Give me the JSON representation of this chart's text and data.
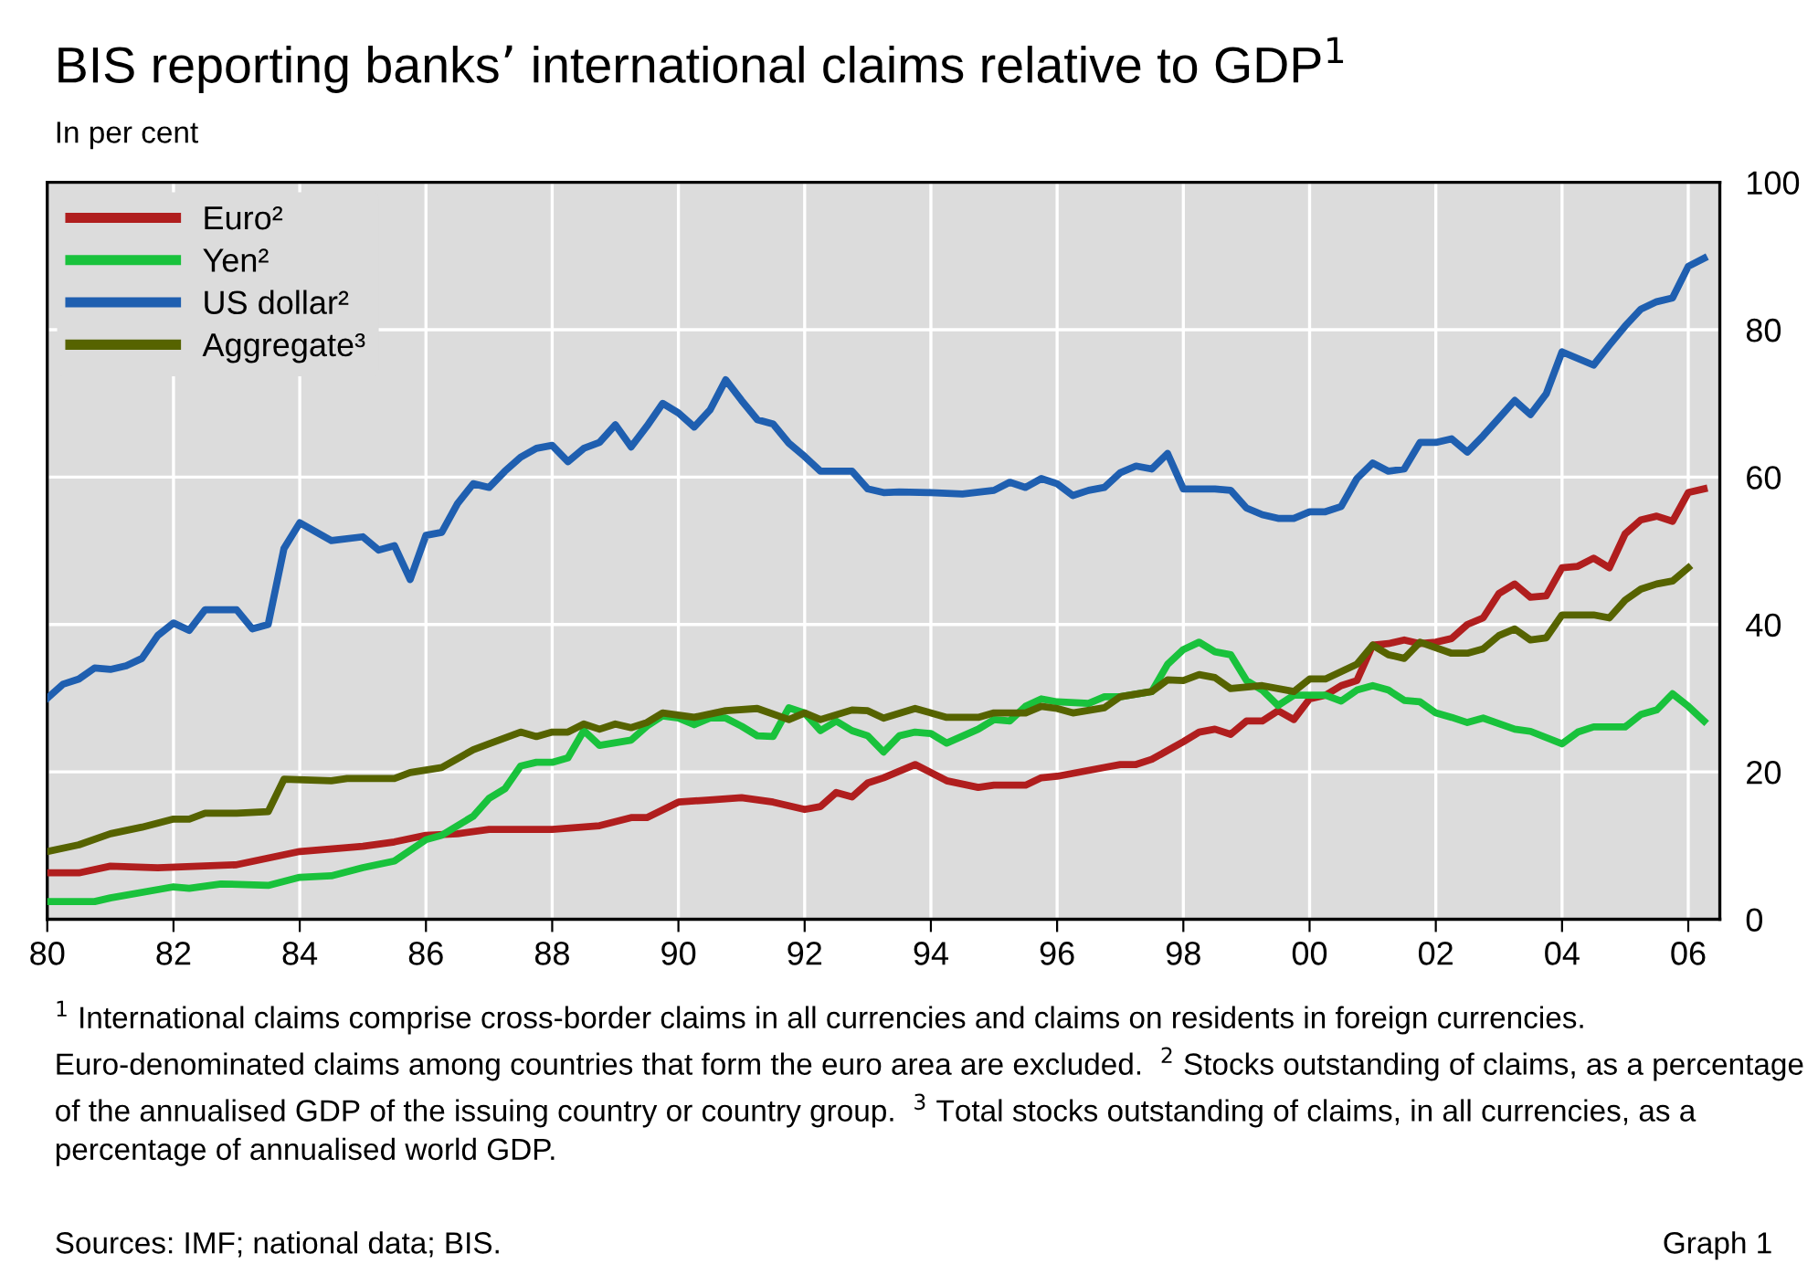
{
  "chart_data": {
    "type": "line",
    "title": "BIS reporting banks’ international claims relative to GDP$^{1}$",
    "subtitle": "In per cent",
    "series": [
      {
        "name": "Euro²",
        "color": "#b01e1e",
        "x": [
          1980,
          1980.5,
          1981,
          1981.75,
          1983,
          1983.5,
          1984,
          1985,
          1985.5,
          1986,
          1986.5,
          1987,
          1988,
          1988.75,
          1989.25,
          1989.5,
          1990,
          1990.5,
          1991,
          1991.5,
          1992,
          1992.25,
          1992.5,
          1992.75,
          1993,
          1993.25,
          1993.75,
          1994.25,
          1994.75,
          1995,
          1995.5,
          1995.75,
          1996,
          1996.75,
          1997,
          1997.25,
          1997.5,
          1998,
          1998.25,
          1998.5,
          1998.75,
          1999,
          1999.25,
          1999.5,
          1999.75,
          2000,
          2000.25,
          2000.5,
          2000.75,
          2001,
          2001.25,
          2001.5,
          2001.75,
          2002,
          2002.25,
          2002.5,
          2002.75,
          2003,
          2003.25,
          2003.5,
          2003.75,
          2004,
          2004.25,
          2004.5,
          2004.75,
          2005,
          2005.25,
          2005.5,
          2005.75,
          2006,
          2006.25
        ],
        "values": [
          6.3,
          6.3,
          7.2,
          7.0,
          7.4,
          8.3,
          9.2,
          9.9,
          10.5,
          11.4,
          11.6,
          12.2,
          12.2,
          12.7,
          13.8,
          13.8,
          15.9,
          16.2,
          16.5,
          15.9,
          14.9,
          15.3,
          17.2,
          16.6,
          18.5,
          19.2,
          21.0,
          18.8,
          17.9,
          18.2,
          18.2,
          19.2,
          19.4,
          20.6,
          21.0,
          21.0,
          21.7,
          24.1,
          25.4,
          25.8,
          25.1,
          26.9,
          26.9,
          28.3,
          27.1,
          29.9,
          30.4,
          31.7,
          32.4,
          37.2,
          37.4,
          37.9,
          37.4,
          37.6,
          38.1,
          40.0,
          40.9,
          44.2,
          45.5,
          43.7,
          43.9,
          47.7,
          47.9,
          49.0,
          47.7,
          52.3,
          54.2,
          54.7,
          54.0,
          57.9,
          58.4
        ]
      },
      {
        "name": "Yen²",
        "color": "#19c23c",
        "x": [
          1980,
          1980.75,
          1981,
          1982,
          1982.25,
          1982.75,
          1983.5,
          1984,
          1984.5,
          1985,
          1985.5,
          1986,
          1986.25,
          1986.75,
          1987,
          1987.25,
          1987.5,
          1987.75,
          1988,
          1988.25,
          1988.5,
          1988.75,
          1989.25,
          1989.5,
          1989.75,
          1990,
          1990.25,
          1990.5,
          1990.75,
          1991,
          1991.25,
          1991.5,
          1991.75,
          1992,
          1992.25,
          1992.5,
          1992.75,
          1993,
          1993.25,
          1993.5,
          1993.75,
          1994,
          1994.25,
          1994.75,
          1995,
          1995.25,
          1995.5,
          1995.75,
          1996,
          1996.5,
          1996.75,
          1997,
          1997.5,
          1997.75,
          1998,
          1998.25,
          1998.5,
          1998.75,
          1999,
          1999.25,
          1999.5,
          1999.75,
          2000,
          2000.25,
          2000.5,
          2000.75,
          2001,
          2001.25,
          2001.5,
          2001.75,
          2002,
          2002.25,
          2002.5,
          2002.75,
          2003.25,
          2003.5,
          2004,
          2004.25,
          2004.5,
          2005,
          2005.25,
          2005.5,
          2005.75,
          2006,
          2006.25
        ],
        "values": [
          2.4,
          2.4,
          2.9,
          4.4,
          4.2,
          4.8,
          4.6,
          5.7,
          5.9,
          7.0,
          7.9,
          10.8,
          11.4,
          14.0,
          16.4,
          17.7,
          20.8,
          21.3,
          21.3,
          21.9,
          25.6,
          23.6,
          24.3,
          26.2,
          27.6,
          27.3,
          26.4,
          27.3,
          27.3,
          26.2,
          24.9,
          24.8,
          28.7,
          28.0,
          25.6,
          26.9,
          25.6,
          24.9,
          22.7,
          24.9,
          25.4,
          25.2,
          23.9,
          25.8,
          27.1,
          26.9,
          28.9,
          29.9,
          29.5,
          29.3,
          30.2,
          30.2,
          30.9,
          34.6,
          36.6,
          37.6,
          36.3,
          35.9,
          32.4,
          31.1,
          29.0,
          30.4,
          30.4,
          30.4,
          29.6,
          31.1,
          31.7,
          31.1,
          29.7,
          29.5,
          28.0,
          27.4,
          26.7,
          27.3,
          25.8,
          25.5,
          23.8,
          25.4,
          26.1,
          26.1,
          27.8,
          28.4,
          30.6,
          28.9,
          26.9
        ]
      },
      {
        "name": "US dollar²",
        "color": "#1f5fb0",
        "x": [
          1980,
          1980.25,
          1980.5,
          1980.75,
          1981,
          1981.25,
          1981.5,
          1981.75,
          1982,
          1982.25,
          1982.5,
          1983,
          1983.25,
          1983.5,
          1983.75,
          1984,
          1984.5,
          1985,
          1985.25,
          1985.5,
          1985.75,
          1986,
          1986.25,
          1986.5,
          1986.75,
          1987,
          1987.25,
          1987.5,
          1987.75,
          1988,
          1988.25,
          1988.5,
          1988.75,
          1989,
          1989.25,
          1989.5,
          1989.75,
          1990,
          1990.25,
          1990.5,
          1990.75,
          1991,
          1991.25,
          1991.5,
          1991.75,
          1992,
          1992.25,
          1992.75,
          1993,
          1993.25,
          1993.5,
          1994,
          1994.5,
          1995,
          1995.25,
          1995.5,
          1995.75,
          1996,
          1996.25,
          1996.5,
          1996.75,
          1997,
          1997.25,
          1997.5,
          1997.75,
          1998,
          1998.5,
          1998.75,
          1999,
          1999.25,
          1999.5,
          1999.75,
          2000,
          2000.25,
          2000.5,
          2000.75,
          2001,
          2001.25,
          2001.5,
          2001.75,
          2002,
          2002.25,
          2002.5,
          2002.75,
          2003,
          2003.25,
          2003.5,
          2003.75,
          2004,
          2004.5,
          2004.75,
          2005,
          2005.25,
          2005.5,
          2005.75,
          2006,
          2006.25
        ],
        "values": [
          30.0,
          31.9,
          32.6,
          34.1,
          33.9,
          34.4,
          35.4,
          38.5,
          40.2,
          39.2,
          42.0,
          42.0,
          39.4,
          40.0,
          50.3,
          53.8,
          51.4,
          51.9,
          50.1,
          50.7,
          46.1,
          52.1,
          52.5,
          56.4,
          59.1,
          58.6,
          60.8,
          62.7,
          63.9,
          64.3,
          62.1,
          63.9,
          64.7,
          67.1,
          64.1,
          66.9,
          70.0,
          68.7,
          66.8,
          69.1,
          73.2,
          70.4,
          67.8,
          67.2,
          64.6,
          62.8,
          60.8,
          60.8,
          58.4,
          57.9,
          58.0,
          57.9,
          57.7,
          58.2,
          59.3,
          58.6,
          59.8,
          59.1,
          57.5,
          58.2,
          58.6,
          60.6,
          61.5,
          61.1,
          63.2,
          58.4,
          58.4,
          58.2,
          55.8,
          54.9,
          54.4,
          54.4,
          55.3,
          55.3,
          56.0,
          59.8,
          61.9,
          60.8,
          61.1,
          64.7,
          64.7,
          65.2,
          63.4,
          65.6,
          68.0,
          70.4,
          68.5,
          71.3,
          77.0,
          75.2,
          77.9,
          80.5,
          82.8,
          83.8,
          84.3,
          88.6,
          89.7
        ]
      },
      {
        "name": "Aggregate³",
        "color": "#566300",
        "x": [
          1980,
          1980.5,
          1981,
          1981.5,
          1982,
          1982.25,
          1982.5,
          1983,
          1983.5,
          1983.75,
          1984.5,
          1984.75,
          1985.5,
          1985.75,
          1986.25,
          1986.75,
          1987,
          1987.5,
          1987.75,
          1988,
          1988.25,
          1988.5,
          1988.75,
          1989,
          1989.25,
          1989.5,
          1989.75,
          1990.25,
          1990.75,
          1991.25,
          1991.75,
          1992,
          1992.25,
          1992.75,
          1993,
          1993.25,
          1993.75,
          1994.25,
          1994.75,
          1995,
          1995.25,
          1995.5,
          1995.75,
          1996,
          1996.25,
          1996.75,
          1997,
          1997.5,
          1997.75,
          1998,
          1998.25,
          1998.5,
          1998.75,
          1999.25,
          1999.75,
          2000,
          2000.25,
          2000.75,
          2001,
          2001.25,
          2001.5,
          2001.75,
          2002.25,
          2002.5,
          2002.75,
          2003,
          2003.25,
          2003.5,
          2003.75,
          2004,
          2004.5,
          2004.75,
          2005,
          2005.25,
          2005.5,
          2005.75,
          2006
        ],
        "values": [
          9.2,
          10.1,
          11.6,
          12.5,
          13.6,
          13.6,
          14.4,
          14.4,
          14.6,
          19.0,
          18.8,
          19.1,
          19.1,
          19.9,
          20.6,
          23.0,
          23.8,
          25.4,
          24.8,
          25.4,
          25.4,
          26.5,
          25.8,
          26.5,
          26.0,
          26.7,
          28.0,
          27.4,
          28.3,
          28.6,
          27.1,
          28.0,
          27.1,
          28.4,
          28.3,
          27.3,
          28.6,
          27.4,
          27.4,
          28.0,
          28.0,
          28.0,
          28.9,
          28.6,
          28.0,
          28.7,
          30.2,
          30.9,
          32.5,
          32.4,
          33.2,
          32.8,
          31.3,
          31.7,
          30.9,
          32.6,
          32.6,
          34.6,
          37.2,
          35.9,
          35.4,
          37.6,
          36.1,
          36.1,
          36.7,
          38.5,
          39.4,
          37.9,
          38.2,
          41.3,
          41.3,
          40.9,
          43.3,
          44.8,
          45.5,
          45.9,
          47.7
        ]
      }
    ],
    "xlim": [
      1980,
      2006.5
    ],
    "xticks": [
      {
        "value": 1980,
        "label": "80"
      },
      {
        "value": 1982,
        "label": "82"
      },
      {
        "value": 1984,
        "label": "84"
      },
      {
        "value": 1986,
        "label": "86"
      },
      {
        "value": 1988,
        "label": "88"
      },
      {
        "value": 1990,
        "label": "90"
      },
      {
        "value": 1992,
        "label": "92"
      },
      {
        "value": 1994,
        "label": "94"
      },
      {
        "value": 1996,
        "label": "96"
      },
      {
        "value": 1998,
        "label": "98"
      },
      {
        "value": 2000,
        "label": "00"
      },
      {
        "value": 2002,
        "label": "02"
      },
      {
        "value": 2004,
        "label": "04"
      },
      {
        "value": 2006,
        "label": "06"
      }
    ],
    "ylim": [
      0,
      100
    ],
    "yticks": [
      0,
      20,
      40,
      60,
      80,
      100
    ],
    "grid": true,
    "legend": "top left",
    "line_style": "solid",
    "annotations": [
      "$^{1}$ International claims comprise cross-border claims in all currencies and claims on residents in foreign currencies. Euro-denominated claims among countries that form the euro area are excluded.  $^{2}$ Stocks outstanding of claims, as a percentage of the annualised GDP of the issuing country or country group.  $^{3}$ Total stocks outstanding of claims, in all currencies, as a percentage of annualised world GDP.",
      "Sources: IMF; national data; BIS.",
      "Graph 1"
    ]
  }
}
